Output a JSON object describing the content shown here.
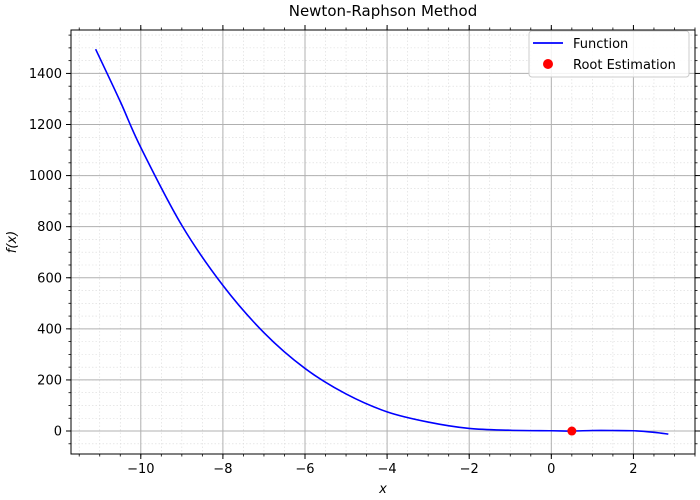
{
  "chart_data": {
    "type": "line",
    "title": "Newton-Raphson Method",
    "xlabel": "x",
    "ylabel": "f(x)",
    "xlim": [
      -11.7,
      3.5
    ],
    "ylim": [
      -90,
      1570
    ],
    "grid": {
      "major": true,
      "minor": true
    },
    "legend_position": "top-right",
    "x_ticks": [
      -10,
      -8,
      -6,
      -4,
      -2,
      0,
      2
    ],
    "x_tick_labels": [
      "−10",
      "−8",
      "−6",
      "−4",
      "−2",
      "0",
      "2"
    ],
    "y_ticks": [
      0,
      200,
      400,
      600,
      800,
      1000,
      1200,
      1400
    ],
    "y_tick_labels": [
      "0",
      "200",
      "400",
      "600",
      "800",
      "1000",
      "1200",
      "1400"
    ],
    "series": [
      {
        "name": "Function",
        "color": "#0000ff",
        "x": [
          -11.1,
          -10.5,
          -10.0,
          -9.0,
          -8.0,
          -7.0,
          -6.0,
          -5.0,
          -4.0,
          -3.0,
          -2.0,
          -1.0,
          0.0,
          0.5,
          1.0,
          1.5,
          2.0,
          2.5,
          2.85
        ],
        "y": [
          1495,
          1290,
          1110,
          805,
          570,
          385,
          245,
          145,
          75,
          35,
          10,
          3,
          1,
          0,
          2,
          2,
          1,
          -5,
          -12
        ]
      }
    ],
    "points": [
      {
        "name": "Root Estimation",
        "color": "#ff0000",
        "x": 0.5,
        "y": 0
      }
    ]
  }
}
